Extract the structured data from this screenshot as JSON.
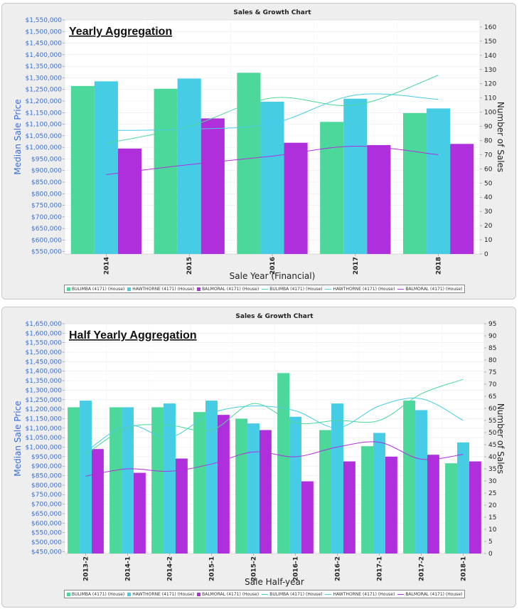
{
  "chart_data": [
    {
      "type": "bar",
      "title": "Sales & Growth Chart",
      "heading": "Yearly Aggregation",
      "xlabel": "Sale Year (Financial)",
      "ylabel": "Median Sale Price",
      "y2label": "Number of Sales",
      "categories": [
        "2014",
        "2015",
        "2016",
        "2017",
        "2018"
      ],
      "ylim": [
        540000,
        1550000
      ],
      "y_ticks": [
        550000,
        600000,
        650000,
        700000,
        750000,
        800000,
        850000,
        900000,
        950000,
        1000000,
        1050000,
        1100000,
        1150000,
        1200000,
        1250000,
        1300000,
        1350000,
        1400000,
        1450000,
        1500000,
        1550000
      ],
      "y_tick_labels": [
        "$550,000",
        "$600,000",
        "$650,000",
        "$700,000",
        "$750,000",
        "$800,000",
        "$850,000",
        "$900,000",
        "$950,000",
        "$1,000,000",
        "$1,050,000",
        "$1,100,000",
        "$1,150,000",
        "$1,200,000",
        "$1,250,000",
        "$1,300,000",
        "$1,350,000",
        "$1,400,000",
        "$1,450,000",
        "$1,500,000",
        "$1,550,000"
      ],
      "y2lim": [
        0,
        165
      ],
      "y2_ticks": [
        0,
        10,
        20,
        30,
        40,
        50,
        60,
        70,
        80,
        90,
        100,
        110,
        120,
        130,
        140,
        150,
        160
      ],
      "bar_series": [
        {
          "name": "BULIMBA (4171) (House)",
          "color": "#4cd89a",
          "values": [
            1265000,
            1253000,
            1322000,
            1110000,
            1148000
          ]
        },
        {
          "name": "HAWTHORNE (4171) (House)",
          "color": "#47cce6",
          "values": [
            1285000,
            1297000,
            1197000,
            1210000,
            1168000
          ]
        },
        {
          "name": "BALMORAL (4171) (House)",
          "color": "#b02fdc",
          "values": [
            995000,
            1125000,
            1020000,
            1010000,
            1015000
          ]
        }
      ],
      "line_series": [
        {
          "name": "BULIMBA (4171) (House)",
          "color": "#4cd89a",
          "values": [
            78,
            90,
            110,
            105,
            126
          ]
        },
        {
          "name": "HAWTHORNE (4171) (House)",
          "color": "#47cce6",
          "values": [
            87,
            88,
            92,
            112,
            109
          ]
        },
        {
          "name": "BALMORAL (4171) (House)",
          "color": "#b02fdc",
          "values": [
            56,
            63,
            69,
            76,
            70
          ]
        }
      ]
    },
    {
      "type": "bar",
      "title": "Sales & Growth Chart",
      "heading": "Half Yearly Aggregation",
      "xlabel": "Sale Half-year",
      "ylabel": "Median Sale Price",
      "y2label": "Number of Sales",
      "categories": [
        "2013-2",
        "2014-1",
        "2014-2",
        "2015-1",
        "2015-2",
        "2016-1",
        "2016-2",
        "2017-1",
        "2017-2",
        "2018-1"
      ],
      "ylim": [
        440000,
        1650000
      ],
      "y_ticks": [
        450000,
        500000,
        550000,
        600000,
        650000,
        700000,
        750000,
        800000,
        850000,
        900000,
        950000,
        1000000,
        1050000,
        1100000,
        1150000,
        1200000,
        1250000,
        1300000,
        1350000,
        1400000,
        1450000,
        1500000,
        1550000,
        1600000,
        1650000
      ],
      "y_tick_labels": [
        "$450,000",
        "$500,000",
        "$550,000",
        "$600,000",
        "$650,000",
        "$700,000",
        "$750,000",
        "$800,000",
        "$850,000",
        "$900,000",
        "$950,000",
        "$1,000,000",
        "$1,050,000",
        "$1,100,000",
        "$1,150,000",
        "$1,200,000",
        "$1,250,000",
        "$1,300,000",
        "$1,350,000",
        "$1,400,000",
        "$1,450,000",
        "$1,500,000",
        "$1,550,000",
        "$1,600,000",
        "$1,650,000"
      ],
      "y2lim": [
        0,
        95
      ],
      "y2_ticks": [
        0,
        5,
        10,
        15,
        20,
        25,
        30,
        35,
        40,
        45,
        50,
        55,
        60,
        65,
        70,
        75,
        80,
        85,
        90,
        95
      ],
      "bar_series": [
        {
          "name": "BULIMBA (4171) (House)",
          "color": "#4cd89a",
          "values": [
            1210000,
            1210000,
            1210000,
            1185000,
            1150000,
            1390000,
            1090000,
            1005000,
            1245000,
            915000
          ]
        },
        {
          "name": "HAWTHORNE (4171) (House)",
          "color": "#47cce6",
          "values": [
            1245000,
            1210000,
            1230000,
            1245000,
            1125000,
            1160000,
            1230000,
            1075000,
            1195000,
            1025000
          ]
        },
        {
          "name": "BALMORAL (4171) (House)",
          "color": "#b02fdc",
          "values": [
            990000,
            865000,
            940000,
            1170000,
            1090000,
            820000,
            925000,
            950000,
            960000,
            925000
          ]
        }
      ],
      "line_series": [
        {
          "name": "BULIMBA (4171) (House)",
          "color": "#4cd89a",
          "values": [
            41,
            52,
            53,
            51,
            62,
            54,
            55,
            55,
            66,
            72
          ]
        },
        {
          "name": "HAWTHORNE (4171) (House)",
          "color": "#47cce6",
          "values": [
            42,
            53,
            48,
            58,
            61,
            59,
            52,
            61,
            64,
            55
          ]
        },
        {
          "name": "BALMORAL (4171) (House)",
          "color": "#b02fdc",
          "values": [
            32,
            35,
            34,
            37,
            42,
            40,
            44,
            46,
            39,
            41
          ]
        }
      ]
    }
  ]
}
